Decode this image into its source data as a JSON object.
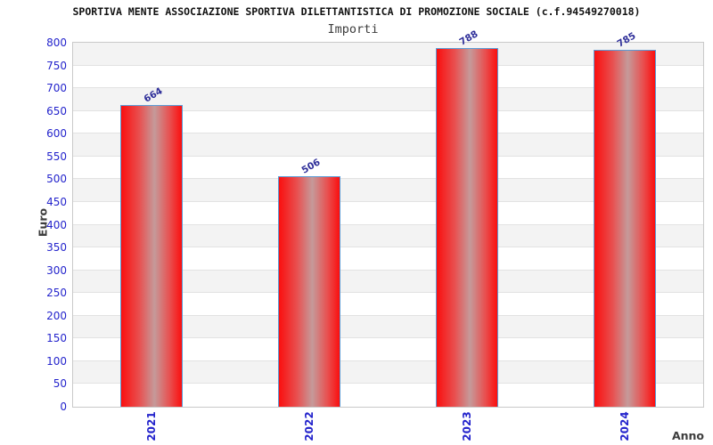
{
  "header": {
    "title": "SPORTIVA MENTE ASSOCIAZIONE SPORTIVA DILETTANTISTICA DI PROMOZIONE SOCIALE (c.f.94549270018)",
    "subtitle": "Importi"
  },
  "chart_data": {
    "type": "bar",
    "title": "Importi",
    "categories": [
      "2021",
      "2022",
      "2023",
      "2024"
    ],
    "values": [
      664,
      506,
      788,
      785
    ],
    "xlabel": "Anno",
    "ylabel": "Euro",
    "ylim": [
      0,
      800
    ],
    "ytick_step": 50,
    "legend": "none",
    "grid": "alternating horizontal bands every 50",
    "colors": {
      "bar_edge_red": "#fa0f0f",
      "bar_center_highlight": "#c59a9a",
      "bar_border_blue": "#5b9bd5",
      "axis_tick_blue": "#2424cc",
      "value_label_navy": "#2e2e99",
      "band_gray": "#f3f3f3",
      "gridline_gray": "#e2e2e2",
      "axis_title_gray": "#3d3d3d"
    }
  }
}
